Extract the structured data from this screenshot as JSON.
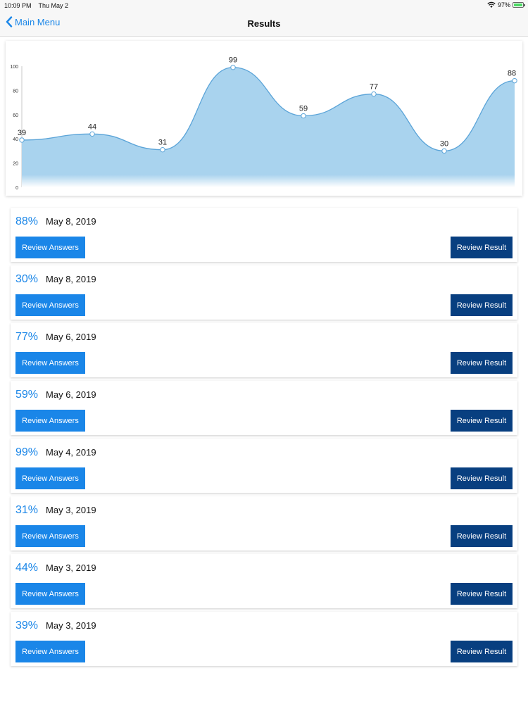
{
  "status_bar": {
    "time": "10:09 PM",
    "date": "Thu May 2",
    "battery": "97%"
  },
  "nav": {
    "back_label": "Main Menu",
    "title": "Results"
  },
  "chart_data": {
    "type": "area",
    "x": [
      1,
      2,
      3,
      4,
      5,
      6,
      7,
      8
    ],
    "values": [
      39,
      44,
      31,
      99,
      59,
      77,
      30,
      88
    ],
    "ylim": [
      0,
      100
    ],
    "yticks": [
      0,
      20,
      40,
      60,
      80,
      100
    ],
    "title": "",
    "xlabel": "",
    "ylabel": "",
    "smooth": true,
    "grid": false,
    "fill_color": "#a9d3ee",
    "line_color": "#5ba4d8"
  },
  "buttons": {
    "review_answers": "Review Answers",
    "review_result": "Review Result"
  },
  "results": [
    {
      "score": "88%",
      "date": "May 8, 2019"
    },
    {
      "score": "30%",
      "date": "May 8, 2019"
    },
    {
      "score": "77%",
      "date": "May 6, 2019"
    },
    {
      "score": "59%",
      "date": "May 6, 2019"
    },
    {
      "score": "99%",
      "date": "May 4, 2019"
    },
    {
      "score": "31%",
      "date": "May 3, 2019"
    },
    {
      "score": "44%",
      "date": "May 3, 2019"
    },
    {
      "score": "39%",
      "date": "May 3, 2019"
    }
  ],
  "colors": {
    "accent": "#1a86e8",
    "dark_button": "#083f80"
  }
}
